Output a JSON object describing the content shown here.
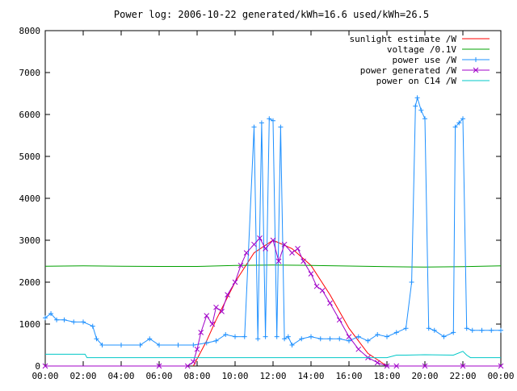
{
  "chart_data": {
    "type": "line",
    "title": "Power log: 2006-10-22 generated/kWh=16.6 used/kWh=26.5",
    "xlabel": "",
    "ylabel": "",
    "x_ticks": [
      "00:00",
      "02:00",
      "04:00",
      "06:00",
      "08:00",
      "10:00",
      "12:00",
      "14:00",
      "16:00",
      "18:00",
      "20:00",
      "22:00",
      "00:00"
    ],
    "x_range_hours": [
      0,
      24
    ],
    "y_ticks": [
      "0",
      "1000",
      "2000",
      "3000",
      "4000",
      "5000",
      "6000",
      "7000",
      "8000"
    ],
    "ylim": [
      0,
      8000
    ],
    "grid": false,
    "legend_position": "top-right",
    "series": [
      {
        "name": "sunlight estimate /W",
        "color": "#ff0000",
        "marker": "none",
        "x": [
          7.8,
          8.5,
          9.0,
          10.0,
          11.0,
          12.0,
          13.0,
          14.0,
          15.0,
          16.0,
          17.0,
          18.0
        ],
        "y": [
          0,
          600,
          1100,
          2000,
          2700,
          3000,
          2800,
          2400,
          1700,
          900,
          300,
          0
        ]
      },
      {
        "name": "voltage /0.1V",
        "color": "#00a000",
        "marker": "none",
        "x": [
          0,
          2,
          4,
          6,
          8,
          10,
          12,
          14,
          16,
          18,
          20,
          22,
          24
        ],
        "y": [
          2380,
          2390,
          2380,
          2375,
          2375,
          2400,
          2410,
          2400,
          2385,
          2370,
          2360,
          2370,
          2390
        ]
      },
      {
        "name": "power use /W",
        "color": "#1e90ff",
        "marker": "plus",
        "x": [
          0,
          0.3,
          0.6,
          1.0,
          1.5,
          2.0,
          2.5,
          2.7,
          3.0,
          4.0,
          5.0,
          5.5,
          6.0,
          7.0,
          7.8,
          8.5,
          9.0,
          9.5,
          10.0,
          10.5,
          11.0,
          11.2,
          11.4,
          11.6,
          11.8,
          12.0,
          12.2,
          12.4,
          12.6,
          12.8,
          13.0,
          13.5,
          14.0,
          14.5,
          15.0,
          15.5,
          16.0,
          16.5,
          17.0,
          17.5,
          18.0,
          18.5,
          19.0,
          19.3,
          19.5,
          19.6,
          19.8,
          20.0,
          20.2,
          20.5,
          21.0,
          21.5,
          21.6,
          21.8,
          22.0,
          22.2,
          22.5,
          23.0,
          23.5,
          24.0
        ],
        "y": [
          1150,
          1250,
          1100,
          1100,
          1050,
          1050,
          950,
          650,
          500,
          500,
          500,
          650,
          500,
          500,
          500,
          550,
          600,
          750,
          700,
          700,
          5700,
          650,
          5800,
          700,
          5900,
          5850,
          700,
          5700,
          650,
          700,
          500,
          650,
          700,
          650,
          650,
          650,
          600,
          700,
          600,
          750,
          700,
          800,
          900,
          2000,
          6200,
          6400,
          6100,
          5900,
          900,
          850,
          700,
          800,
          5700,
          5800,
          5900,
          900,
          850,
          850,
          850,
          850
        ]
      },
      {
        "name": "power generated /W",
        "color": "#a000c8",
        "marker": "x",
        "x": [
          0,
          6.0,
          7.5,
          7.8,
          8.0,
          8.2,
          8.5,
          8.8,
          9.0,
          9.3,
          9.6,
          10.0,
          10.3,
          10.6,
          11.0,
          11.3,
          11.6,
          12.0,
          12.3,
          12.6,
          13.0,
          13.3,
          13.6,
          14.0,
          14.3,
          14.6,
          15.0,
          15.5,
          16.0,
          16.5,
          17.0,
          17.5,
          18.0,
          18.5,
          20.0,
          22.0,
          24.0
        ],
        "y": [
          0,
          0,
          0,
          100,
          400,
          800,
          1200,
          1000,
          1400,
          1300,
          1700,
          2000,
          2400,
          2700,
          2900,
          3050,
          2800,
          3000,
          2500,
          2900,
          2700,
          2800,
          2500,
          2200,
          1900,
          1800,
          1500,
          1100,
          700,
          400,
          200,
          80,
          0,
          0,
          0,
          0,
          0
        ]
      },
      {
        "name": "power on C14 /W",
        "color": "#00c8c8",
        "marker": "none",
        "x": [
          0,
          1.5,
          2.1,
          2.2,
          4,
          6,
          8,
          10,
          12,
          14,
          16,
          18,
          18.5,
          19,
          20,
          21.5,
          22.0,
          22.2,
          22.4,
          23,
          24
        ],
        "y": [
          280,
          280,
          280,
          200,
          200,
          200,
          200,
          200,
          200,
          200,
          200,
          200,
          260,
          260,
          270,
          260,
          350,
          260,
          200,
          200,
          200
        ]
      }
    ]
  }
}
